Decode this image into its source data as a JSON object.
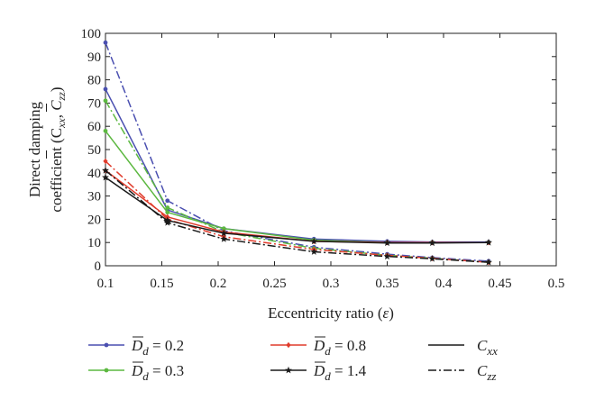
{
  "chart_data": {
    "type": "line",
    "xlabel_prefix": "Eccentricity ratio (",
    "xlabel_symbol": "ε",
    "xlabel_suffix": ")",
    "ylabel_line1": "Direct damping",
    "ylabel_line2": "coefficient (C",
    "xlim": [
      0.1,
      0.5
    ],
    "ylim": [
      0,
      100
    ],
    "xticks": [
      0.1,
      0.15,
      0.2,
      0.25,
      0.3,
      0.35,
      0.4,
      0.45,
      0.5
    ],
    "xtick_labels": [
      "0.1",
      "0.15",
      "0.2",
      "0.25",
      "0.3",
      "0.35",
      "0.4",
      "0.45",
      "0.5"
    ],
    "yticks": [
      0,
      10,
      20,
      30,
      40,
      50,
      60,
      70,
      80,
      90,
      100
    ],
    "ytick_labels": [
      "0",
      "10",
      "20",
      "30",
      "40",
      "50",
      "60",
      "70",
      "80",
      "90",
      "100"
    ],
    "grid": false,
    "legend_placement": "below",
    "x": [
      0.1,
      0.155,
      0.205,
      0.285,
      0.35,
      0.39,
      0.44
    ],
    "series": [
      {
        "name": "D_d = 0.2",
        "component": "Cxx",
        "color": "#4a4fb0",
        "marker": "dot",
        "dash": "solid",
        "values": [
          76,
          24,
          16,
          11.5,
          10.5,
          10.2,
          10.2
        ]
      },
      {
        "name": "D_d = 0.2",
        "component": "Czz",
        "color": "#4a4fb0",
        "marker": "dot",
        "dash": "dashdot",
        "values": [
          96,
          28,
          15,
          8,
          5,
          3.5,
          2
        ]
      },
      {
        "name": "D_d = 0.3",
        "component": "Cxx",
        "color": "#5cb840",
        "marker": "dot",
        "dash": "solid",
        "values": [
          58,
          23,
          16,
          11,
          10,
          10,
          10
        ]
      },
      {
        "name": "D_d = 0.3",
        "component": "Czz",
        "color": "#5cb840",
        "marker": "dot",
        "dash": "dashdot",
        "values": [
          71,
          25,
          14.5,
          7.5,
          4.5,
          3.2,
          1.5
        ]
      },
      {
        "name": "D_d = 0.8",
        "component": "Cxx",
        "color": "#e03c2c",
        "marker": "diamond",
        "dash": "solid",
        "values": [
          41,
          21,
          14.5,
          10.5,
          10,
          10,
          10
        ]
      },
      {
        "name": "D_d = 0.8",
        "component": "Czz",
        "color": "#e03c2c",
        "marker": "diamond",
        "dash": "dashdot",
        "values": [
          45,
          20,
          12.5,
          7,
          4.5,
          3.2,
          1.5
        ]
      },
      {
        "name": "D_d = 1.4",
        "component": "Cxx",
        "color": "#1a1a1a",
        "marker": "star",
        "dash": "solid",
        "values": [
          38,
          19.5,
          14,
          10.5,
          9.8,
          9.8,
          10
        ]
      },
      {
        "name": "D_d = 1.4",
        "component": "Czz",
        "color": "#1a1a1a",
        "marker": "star",
        "dash": "dashdot",
        "values": [
          41,
          18.5,
          11.5,
          6,
          4,
          3,
          1.5
        ]
      }
    ],
    "legend": {
      "groups": [
        {
          "symbol": "D",
          "sub": "d",
          "eq": " = 0.2",
          "color": "#4a4fb0",
          "marker": "dot"
        },
        {
          "symbol": "D",
          "sub": "d",
          "eq": " = 0.3",
          "color": "#5cb840",
          "marker": "dot"
        },
        {
          "symbol": "D",
          "sub": "d",
          "eq": " = 0.8",
          "color": "#e03c2c",
          "marker": "diamond"
        },
        {
          "symbol": "D",
          "sub": "d",
          "eq": " = 1.4",
          "color": "#1a1a1a",
          "marker": "star"
        }
      ],
      "styles": [
        {
          "symbol": "C",
          "sub": "xx",
          "dash": "solid"
        },
        {
          "symbol": "C",
          "sub": "zz",
          "dash": "dashdot"
        }
      ]
    }
  }
}
